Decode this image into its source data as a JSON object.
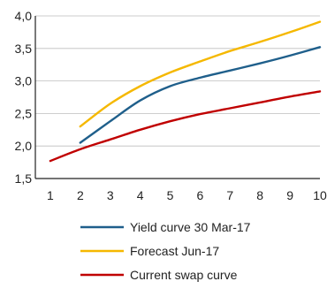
{
  "chart_data": {
    "type": "line",
    "title": "",
    "xlabel": "",
    "ylabel": "",
    "xlim": [
      0.5,
      10.0
    ],
    "ylim": [
      1.5,
      4.0
    ],
    "x_ticks": [
      1,
      2,
      3,
      4,
      5,
      6,
      7,
      8,
      9,
      10
    ],
    "y_ticks": [
      "1,5",
      "2,0",
      "2,5",
      "3,0",
      "3,5",
      "4,0"
    ],
    "y_tick_values": [
      1.5,
      2.0,
      2.5,
      3.0,
      3.5,
      4.0
    ],
    "grid": "horizontal",
    "legend_position": "bottom",
    "series": [
      {
        "name": "Yield curve 30 Mar-17",
        "color": "#1f5f8b",
        "x": [
          2,
          3,
          4,
          5,
          6,
          7,
          8,
          9,
          10
        ],
        "y": [
          2.05,
          2.38,
          2.7,
          2.92,
          3.05,
          3.16,
          3.27,
          3.39,
          3.52
        ]
      },
      {
        "name": "Forecast Jun-17",
        "color": "#f5b800",
        "x": [
          2,
          3,
          4,
          5,
          6,
          7,
          8,
          9,
          10
        ],
        "y": [
          2.3,
          2.65,
          2.92,
          3.13,
          3.3,
          3.46,
          3.6,
          3.75,
          3.91
        ]
      },
      {
        "name": "Current swap curve",
        "color": "#c00000",
        "x": [
          1,
          2,
          3,
          4,
          5,
          6,
          7,
          8,
          9,
          10
        ],
        "y": [
          1.77,
          1.95,
          2.1,
          2.25,
          2.38,
          2.49,
          2.58,
          2.67,
          2.76,
          2.84
        ]
      }
    ]
  }
}
